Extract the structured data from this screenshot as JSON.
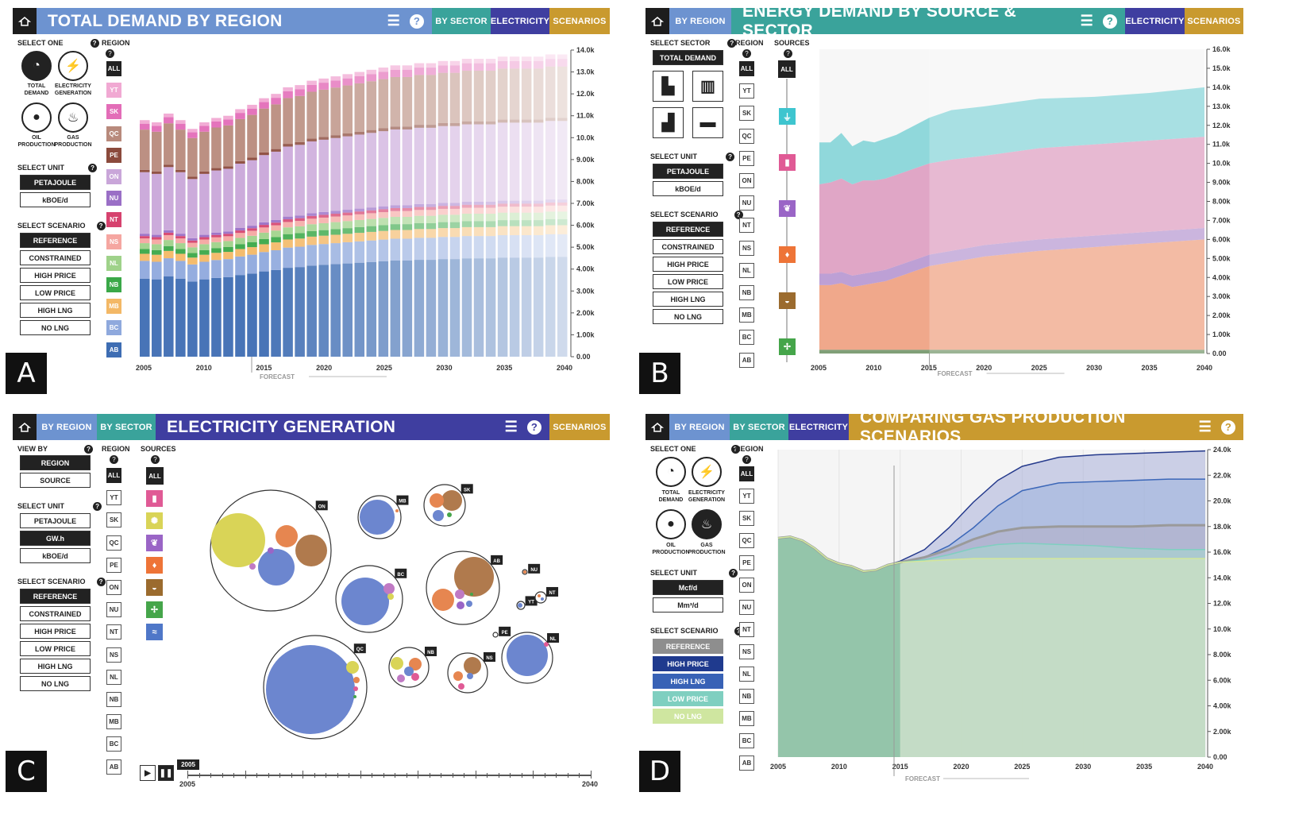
{
  "colors": {
    "region": {
      "ALL": "#222222",
      "YT": "#f1a9d3",
      "SK": "#e36db8",
      "QC": "#b88a7c",
      "PE": "#8b4a3c",
      "ON": "#c9a6d9",
      "NU": "#9a6fc6",
      "NT": "#d6426e",
      "NS": "#f5a6a1",
      "NL": "#9fd28a",
      "NB": "#3aa848",
      "MB": "#f3b866",
      "BC": "#8fa9dd",
      "AB": "#3e6db3"
    },
    "panelA": "#6d93d0",
    "panelB": "#3aa39b",
    "panelC": "#3f3ea0",
    "panelD": "#c99a2f"
  },
  "icons": [
    "home-icon",
    "list-icon",
    "help-icon",
    "gauge-icon",
    "lightning-icon",
    "oil-drop-icon",
    "flame-icon",
    "building-icon",
    "office-tower-icon",
    "factory-icon",
    "truck-icon",
    "plug-icon",
    "fuel-pump-icon",
    "leaf-icon",
    "fire-icon",
    "coal-cart-icon",
    "wind-turbine-icon",
    "nuclear-icon",
    "water-wave-icon",
    "play-icon",
    "pause-icon"
  ],
  "panelA": {
    "letter": "A",
    "tabs": {
      "by_sector": "BY SECTOR",
      "electricity": "ELECTRICITY",
      "scenarios": "SCENARIOS"
    },
    "title": "TOTAL DEMAND BY REGION",
    "select_one": "SELECT ONE",
    "region": "REGION",
    "circles": [
      {
        "label": "TOTAL DEMAND"
      },
      {
        "label": "ELECTRICITY GENERATION"
      },
      {
        "label": "OIL PRODUCTION"
      },
      {
        "label": "GAS PRODUCTION"
      }
    ],
    "select_unit": "SELECT UNIT",
    "units": [
      "PETAJOULE",
      "kBOE/d"
    ],
    "select_scenario": "SELECT SCENARIO",
    "scenarios": [
      "REFERENCE",
      "CONSTRAINED",
      "HIGH PRICE",
      "LOW PRICE",
      "HIGH LNG",
      "NO LNG"
    ],
    "regions": [
      "ALL",
      "YT",
      "SK",
      "QC",
      "PE",
      "ON",
      "NU",
      "NT",
      "NS",
      "NL",
      "NB",
      "MB",
      "BC",
      "AB"
    ],
    "forecast": "FORECAST"
  },
  "panelB": {
    "letter": "B",
    "tabs": {
      "by_region": "BY REGION",
      "electricity": "ELECTRICITY",
      "scenarios": "SCENARIOS"
    },
    "title": "ENERGY DEMAND BY SOURCE & SECTOR",
    "select_sector": "SELECT SECTOR",
    "total_demand": "TOTAL DEMAND",
    "region": "REGION",
    "sources": "SOURCES",
    "select_unit": "SELECT UNIT",
    "units": [
      "PETAJOULE",
      "kBOE/d"
    ],
    "select_scenario": "SELECT SCENARIO",
    "scenarios": [
      "REFERENCE",
      "CONSTRAINED",
      "HIGH PRICE",
      "LOW PRICE",
      "HIGH LNG",
      "NO LNG"
    ],
    "regions": [
      "ALL",
      "YT",
      "SK",
      "QC",
      "PE",
      "ON",
      "NU",
      "NT",
      "NS",
      "NL",
      "NB",
      "MB",
      "BC",
      "AB"
    ],
    "all": "ALL",
    "forecast": "FORECAST"
  },
  "panelC": {
    "letter": "C",
    "tabs": {
      "by_region": "BY REGION",
      "by_sector": "BY SECTOR",
      "scenarios": "SCENARIOS"
    },
    "title": "ELECTRICITY GENERATION",
    "view_by": "VIEW BY",
    "views": [
      "REGION",
      "SOURCE"
    ],
    "region": "REGION",
    "sources": "SOURCES",
    "select_unit": "SELECT UNIT",
    "units": [
      "PETAJOULE",
      "GW.h",
      "kBOE/d"
    ],
    "select_scenario": "SELECT SCENARIO",
    "scenarios": [
      "REFERENCE",
      "CONSTRAINED",
      "HIGH PRICE",
      "LOW PRICE",
      "HIGH LNG",
      "NO LNG"
    ],
    "regions": [
      "ALL",
      "YT",
      "SK",
      "QC",
      "PE",
      "ON",
      "NU",
      "NT",
      "NS",
      "NL",
      "NB",
      "MB",
      "BC",
      "AB"
    ],
    "all": "ALL",
    "timeline": {
      "current": "2005",
      "start": "2005",
      "end": "2040"
    }
  },
  "panelD": {
    "letter": "D",
    "tabs": {
      "by_region": "BY REGION",
      "by_sector": "BY SECTOR",
      "electricity": "ELECTRICITY"
    },
    "title": "COMPARING GAS PRODUCTION SCENARIOS",
    "select_one": "SELECT ONE",
    "region": "REGION",
    "circles": [
      {
        "label": "TOTAL DEMAND"
      },
      {
        "label": "ELECTRICITY GENERATION"
      },
      {
        "label": "OIL PRODUCTION"
      },
      {
        "label": "GAS PRODUCTION"
      }
    ],
    "select_unit": "SELECT UNIT",
    "units": [
      "Mcf/d",
      "Mm³/d"
    ],
    "select_scenario": "SELECT SCENARIO",
    "scenarios": [
      "REFERENCE",
      "HIGH PRICE",
      "HIGH LNG",
      "LOW PRICE",
      "NO LNG"
    ],
    "regions": [
      "ALL",
      "YT",
      "SK",
      "QC",
      "PE",
      "ON",
      "NU",
      "NT",
      "NS",
      "NL",
      "NB",
      "MB",
      "BC",
      "AB"
    ],
    "forecast": "FORECAST"
  },
  "chart_data": [
    {
      "type": "bar",
      "stacked": true,
      "x_ticks": [
        "2005",
        "2010",
        "2015",
        "2020",
        "2025",
        "2030",
        "2035",
        "2040"
      ],
      "y_ticks": [
        "0.00",
        "1.00k",
        "2.00k",
        "3.00k",
        "4.00k",
        "5.00k",
        "6.00k",
        "7.00k",
        "8.00k",
        "9.00k",
        "10.0k",
        "11.0k",
        "12.0k",
        "13.0k",
        "14.0k"
      ],
      "x": [
        2005,
        2006,
        2007,
        2008,
        2009,
        2010,
        2011,
        2012,
        2013,
        2014,
        2015,
        2016,
        2017,
        2018,
        2019,
        2020,
        2021,
        2022,
        2023,
        2024,
        2025,
        2026,
        2027,
        2028,
        2029,
        2030,
        2031,
        2032,
        2033,
        2034,
        2035,
        2036,
        2037,
        2038,
        2039,
        2040
      ],
      "series_order": [
        "AB",
        "BC",
        "MB",
        "NB",
        "NL",
        "NS",
        "NT",
        "NU",
        "ON",
        "PE",
        "QC",
        "SK",
        "YT"
      ],
      "totals": [
        10.8,
        10.7,
        11.1,
        10.8,
        10.4,
        10.7,
        10.9,
        11.0,
        11.3,
        11.5,
        11.8,
        12.0,
        12.3,
        12.4,
        12.6,
        12.7,
        12.8,
        12.9,
        13.0,
        13.1,
        13.2,
        13.3,
        13.3,
        13.4,
        13.4,
        13.5,
        13.5,
        13.6,
        13.6,
        13.6,
        13.7,
        13.7,
        13.7,
        13.7,
        13.8,
        13.8
      ],
      "ylim": [
        0,
        14
      ]
    },
    {
      "type": "area",
      "stacked": true,
      "x_ticks": [
        "2005",
        "2010",
        "2015",
        "2020",
        "2025",
        "2030",
        "2035",
        "2040"
      ],
      "y_ticks": [
        "0.00",
        "1.00k",
        "2.00k",
        "3.00k",
        "4.00k",
        "5.00k",
        "6.00k",
        "7.00k",
        "8.00k",
        "9.00k",
        "10.0k",
        "11.0k",
        "12.0k",
        "13.0k",
        "14.0k",
        "15.0k",
        "16.0k"
      ],
      "x": [
        2005,
        2006,
        2007,
        2008,
        2009,
        2010,
        2011,
        2012,
        2013,
        2014,
        2015,
        2017,
        2020,
        2025,
        2030,
        2035,
        2040
      ],
      "series": [
        {
          "source": "coal",
          "color": "#6b8f62",
          "values": [
            0.2,
            0.2,
            0.2,
            0.2,
            0.2,
            0.2,
            0.2,
            0.2,
            0.2,
            0.2,
            0.2,
            0.2,
            0.2,
            0.2,
            0.2,
            0.2,
            0.2
          ]
        },
        {
          "source": "oil",
          "color": "#ef9a78",
          "values": [
            3.4,
            3.4,
            3.5,
            3.3,
            3.4,
            3.5,
            3.6,
            3.8,
            4.0,
            4.2,
            4.4,
            4.6,
            4.9,
            5.2,
            5.4,
            5.6,
            5.8
          ]
        },
        {
          "source": "biofuel",
          "color": "#b391cf",
          "values": [
            0.6,
            0.6,
            0.6,
            0.6,
            0.6,
            0.6,
            0.6,
            0.6,
            0.6,
            0.6,
            0.6,
            0.6,
            0.6,
            0.6,
            0.6,
            0.6,
            0.6
          ]
        },
        {
          "source": "electricity",
          "color": "#dc98bd",
          "values": [
            4.7,
            4.8,
            4.9,
            4.8,
            4.9,
            4.8,
            4.8,
            4.8,
            4.8,
            4.8,
            4.8,
            4.8,
            4.7,
            4.8,
            4.8,
            4.8,
            4.8
          ]
        },
        {
          "source": "gas",
          "color": "#7ed2d6",
          "values": [
            2.2,
            2.1,
            2.4,
            2.0,
            2.1,
            2.0,
            2.1,
            2.1,
            2.2,
            2.3,
            2.4,
            2.6,
            2.6,
            2.6,
            2.5,
            2.5,
            2.6
          ]
        }
      ],
      "ylim": [
        0,
        16
      ]
    },
    {
      "type": "scatter",
      "bubbles": [
        {
          "region": "ON",
          "r": 76,
          "parts": [
            {
              "c": "#d9d457",
              "r": 34
            },
            {
              "c": "#6c86cf",
              "r": 23
            },
            {
              "c": "#e68650",
              "r": 14
            },
            {
              "c": "#b07a4d",
              "r": 20
            }
          ]
        },
        {
          "region": "MB",
          "r": 27
        },
        {
          "region": "SK",
          "r": 26
        },
        {
          "region": "BC",
          "r": 42
        },
        {
          "region": "AB",
          "r": 46
        },
        {
          "region": "NU",
          "r": 3
        },
        {
          "region": "YT",
          "r": 5
        },
        {
          "region": "NT",
          "r": 7
        },
        {
          "region": "QC",
          "r": 65
        },
        {
          "region": "NB",
          "r": 25
        },
        {
          "region": "NS",
          "r": 25
        },
        {
          "region": "PE",
          "r": 3
        },
        {
          "region": "NL",
          "r": 32
        }
      ]
    },
    {
      "type": "area",
      "x_ticks": [
        "2005",
        "2010",
        "2015",
        "2020",
        "2025",
        "2030",
        "2035",
        "2040"
      ],
      "y_ticks": [
        "0.00",
        "2.00k",
        "4.00k",
        "6.00k",
        "8.00k",
        "10.0k",
        "12.0k",
        "14.0k",
        "16.0k",
        "18.0k",
        "20.0k",
        "22.0k",
        "24.0k"
      ],
      "x": [
        2005,
        2006,
        2007,
        2008,
        2009,
        2010,
        2011,
        2012,
        2013,
        2014,
        2015,
        2017,
        2019,
        2021,
        2023,
        2025,
        2028,
        2031,
        2034,
        2037,
        2040
      ],
      "series": [
        {
          "scenario": "REFERENCE",
          "color": "#9a9a9a",
          "values": [
            17.1,
            17.2,
            16.9,
            16.3,
            15.5,
            15.1,
            14.9,
            14.5,
            14.6,
            15.0,
            15.2,
            15.6,
            16.2,
            17.0,
            17.6,
            17.9,
            18.0,
            18.0,
            18.0,
            18.1,
            18.1
          ]
        },
        {
          "scenario": "HIGH PRICE",
          "color": "#253a8c",
          "values": [
            17.1,
            17.2,
            16.9,
            16.3,
            15.5,
            15.1,
            14.9,
            14.5,
            14.6,
            15.0,
            15.3,
            16.2,
            17.9,
            19.9,
            21.6,
            22.7,
            23.4,
            23.6,
            23.7,
            23.8,
            23.9
          ]
        },
        {
          "scenario": "HIGH LNG",
          "color": "#3c67b8",
          "values": [
            17.1,
            17.2,
            16.9,
            16.3,
            15.5,
            15.1,
            14.9,
            14.5,
            14.6,
            15.0,
            15.2,
            15.6,
            16.5,
            17.9,
            19.6,
            20.8,
            21.4,
            21.5,
            21.6,
            21.7,
            21.7
          ]
        },
        {
          "scenario": "LOW PRICE",
          "color": "#7fcfc0",
          "values": [
            17.1,
            17.2,
            16.9,
            16.3,
            15.5,
            15.1,
            14.9,
            14.5,
            14.6,
            15.0,
            15.2,
            15.4,
            15.8,
            16.3,
            16.6,
            16.7,
            16.6,
            16.5,
            16.3,
            16.2,
            16.2
          ]
        },
        {
          "scenario": "NO LNG",
          "color": "#d4e79a",
          "values": [
            17.1,
            17.2,
            16.9,
            16.3,
            15.5,
            15.1,
            14.9,
            14.5,
            14.6,
            15.0,
            15.2,
            15.3,
            15.4,
            15.5,
            15.5,
            15.5,
            15.5,
            15.5,
            15.5,
            15.5,
            15.5
          ]
        }
      ],
      "ylim": [
        0,
        24
      ]
    }
  ]
}
